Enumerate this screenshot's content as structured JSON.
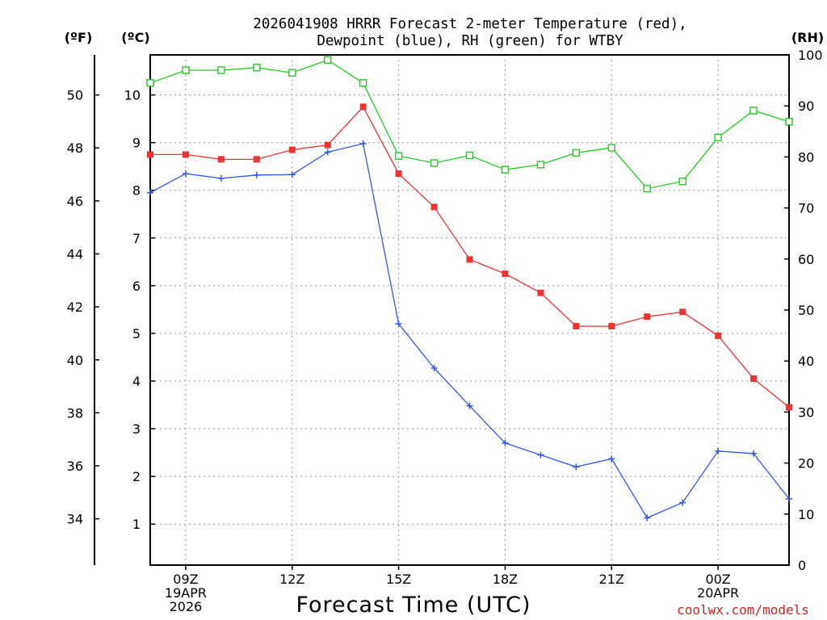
{
  "chart_data": {
    "type": "line",
    "title_line1": "2026041908 HRRR Forecast 2-meter Temperature (red),",
    "title_line2": "Dewpoint (blue), RH (green) for WTBY",
    "xlabel": "Forecast Time (UTC)",
    "watermark": "coolwx.com/models",
    "units": {
      "fahrenheit": "(ºF)",
      "celsius": "(ºC)",
      "rh": "(RH)"
    },
    "x_hours": [
      8,
      9,
      10,
      11,
      12,
      13,
      14,
      15,
      16,
      17,
      18,
      19,
      20,
      21,
      22,
      23,
      24,
      25,
      26
    ],
    "xlim": [
      8,
      26
    ],
    "x_ticks": [
      {
        "hour": 9,
        "lines": [
          "09Z",
          "19APR",
          "2026"
        ]
      },
      {
        "hour": 12,
        "lines": [
          "12Z"
        ]
      },
      {
        "hour": 15,
        "lines": [
          "15Z"
        ]
      },
      {
        "hour": 18,
        "lines": [
          "18Z"
        ]
      },
      {
        "hour": 21,
        "lines": [
          "21Z"
        ]
      },
      {
        "hour": 24,
        "lines": [
          "00Z",
          "20APR"
        ]
      }
    ],
    "celsius_axis": {
      "ylim": [
        0.14,
        10.84
      ],
      "ticks": [
        "1",
        "2",
        "3",
        "4",
        "5",
        "6",
        "7",
        "8",
        "9",
        "10"
      ]
    },
    "fahrenheit_axis": {
      "ticks": [
        "34",
        "36",
        "38",
        "40",
        "42",
        "44",
        "46",
        "48",
        "50"
      ]
    },
    "rh_axis": {
      "ylim": [
        0,
        100
      ],
      "ticks": [
        "0",
        "10",
        "20",
        "30",
        "40",
        "50",
        "60",
        "70",
        "80",
        "90",
        "100"
      ]
    },
    "series": [
      {
        "name": "Temperature",
        "color": "#ee3333",
        "marker": "filled-square",
        "units": "C",
        "values": [
          8.75,
          8.75,
          8.65,
          8.65,
          8.85,
          8.95,
          9.75,
          8.35,
          7.65,
          6.55,
          6.25,
          5.85,
          5.15,
          5.15,
          5.35,
          5.45,
          4.95,
          4.05,
          3.45
        ]
      },
      {
        "name": "Dewpoint",
        "color": "#3355ee",
        "marker": "plus",
        "units": "C",
        "values": [
          7.95,
          8.35,
          8.25,
          8.32,
          8.33,
          8.8,
          8.98,
          5.2,
          4.27,
          3.48,
          2.7,
          2.45,
          2.2,
          2.37,
          1.13,
          1.45,
          2.53,
          2.48,
          1.53
        ]
      },
      {
        "name": "RH",
        "color": "#22cc22",
        "marker": "open-square",
        "units": "%",
        "values": [
          94.5,
          97,
          97,
          97.5,
          96.5,
          99,
          94.5,
          80.2,
          78.8,
          80.3,
          77.5,
          78.5,
          80.8,
          81.8,
          73.8,
          75.2,
          83.8,
          89.1,
          86.9
        ]
      }
    ]
  }
}
